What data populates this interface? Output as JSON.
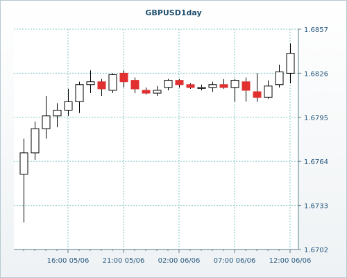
{
  "chart_data": {
    "type": "candlestick",
    "title": "GBPUSD1day",
    "y_axis_side": "right",
    "ylim": [
      1.6702,
      1.6857
    ],
    "y_ticks": [
      1.6702,
      1.6733,
      1.6764,
      1.6795,
      1.6826,
      1.6857
    ],
    "y_tick_labels": [
      "1.6702",
      "1.6733",
      "1.6764",
      "1.6795",
      "1.6826",
      "1.6857"
    ],
    "x_tick_labels": [
      "16:00 05/06",
      "21:00 05/06",
      "02:00 06/06",
      "07:00 06/06",
      "12:00 06/06"
    ],
    "x_tick_candle_index": [
      4,
      9,
      14,
      19,
      24
    ],
    "grid": true,
    "colors": {
      "up_body": "#ffffff",
      "down_body": "#e03030",
      "wick": "#000000",
      "grid": "#86c6c6",
      "axis": "#5a7a8a",
      "plot_bg": "#ffffff"
    },
    "candles": [
      {
        "open": 1.6755,
        "high": 1.678,
        "low": 1.6721,
        "close": 1.677
      },
      {
        "open": 1.677,
        "high": 1.6792,
        "low": 1.6765,
        "close": 1.6787
      },
      {
        "open": 1.6787,
        "high": 1.681,
        "low": 1.678,
        "close": 1.6796
      },
      {
        "open": 1.6796,
        "high": 1.6805,
        "low": 1.6788,
        "close": 1.68
      },
      {
        "open": 1.68,
        "high": 1.6815,
        "low": 1.6796,
        "close": 1.6806
      },
      {
        "open": 1.6806,
        "high": 1.682,
        "low": 1.6798,
        "close": 1.6818
      },
      {
        "open": 1.6818,
        "high": 1.6828,
        "low": 1.6812,
        "close": 1.682
      },
      {
        "open": 1.682,
        "high": 1.6822,
        "low": 1.681,
        "close": 1.6815
      },
      {
        "open": 1.6814,
        "high": 1.6826,
        "low": 1.6812,
        "close": 1.6825
      },
      {
        "open": 1.6826,
        "high": 1.6828,
        "low": 1.6816,
        "close": 1.682
      },
      {
        "open": 1.6821,
        "high": 1.6823,
        "low": 1.6812,
        "close": 1.6815
      },
      {
        "open": 1.6814,
        "high": 1.6816,
        "low": 1.6811,
        "close": 1.6812
      },
      {
        "open": 1.6812,
        "high": 1.6817,
        "low": 1.681,
        "close": 1.6814
      },
      {
        "open": 1.6816,
        "high": 1.6822,
        "low": 1.6814,
        "close": 1.6821
      },
      {
        "open": 1.6821,
        "high": 1.6822,
        "low": 1.6816,
        "close": 1.6818
      },
      {
        "open": 1.6818,
        "high": 1.6819,
        "low": 1.6815,
        "close": 1.6816
      },
      {
        "open": 1.6816,
        "high": 1.6818,
        "low": 1.6814,
        "close": 1.6816
      },
      {
        "open": 1.6816,
        "high": 1.682,
        "low": 1.6813,
        "close": 1.6818
      },
      {
        "open": 1.6818,
        "high": 1.6822,
        "low": 1.6815,
        "close": 1.6816
      },
      {
        "open": 1.6816,
        "high": 1.6822,
        "low": 1.6806,
        "close": 1.6821
      },
      {
        "open": 1.682,
        "high": 1.6823,
        "low": 1.6806,
        "close": 1.6814
      },
      {
        "open": 1.6813,
        "high": 1.6826,
        "low": 1.6806,
        "close": 1.6809
      },
      {
        "open": 1.6809,
        "high": 1.6821,
        "low": 1.6808,
        "close": 1.6817
      },
      {
        "open": 1.6818,
        "high": 1.6832,
        "low": 1.6816,
        "close": 1.6827
      },
      {
        "open": 1.6826,
        "high": 1.6847,
        "low": 1.6819,
        "close": 1.684
      }
    ]
  }
}
